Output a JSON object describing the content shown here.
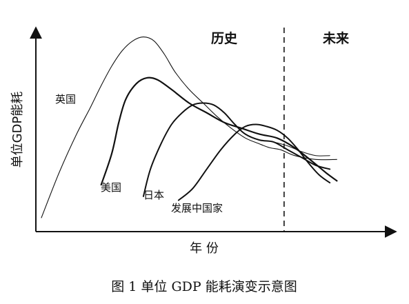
{
  "chart_data": {
    "type": "line",
    "title": "",
    "xlabel": "年 份",
    "ylabel": "单位GDP能耗",
    "xlim": [
      0,
      100
    ],
    "ylim": [
      0,
      100
    ],
    "grid": false,
    "caption": "图 1  单位 GDP 能耗演变示意图",
    "regions": {
      "history_label": "历史",
      "future_label": "未来",
      "divider_x": 69
    },
    "series": [
      {
        "name": "英国",
        "stroke": 1.1,
        "points": [
          [
            0,
            5
          ],
          [
            5,
            28
          ],
          [
            10,
            48
          ],
          [
            14,
            62
          ],
          [
            17,
            73
          ],
          [
            20,
            83
          ],
          [
            23,
            91
          ],
          [
            26,
            96
          ],
          [
            29,
            98
          ],
          [
            32,
            96
          ],
          [
            35,
            89
          ],
          [
            38,
            80
          ],
          [
            42,
            71
          ],
          [
            46,
            64
          ],
          [
            50,
            57
          ],
          [
            54,
            51
          ],
          [
            58,
            46
          ],
          [
            62,
            43
          ],
          [
            65,
            41
          ],
          [
            68,
            40
          ],
          [
            72,
            37
          ],
          [
            78,
            35
          ],
          [
            84,
            35
          ]
        ]
      },
      {
        "name": "美国",
        "stroke": 2.2,
        "points": [
          [
            17,
            22
          ],
          [
            20,
            38
          ],
          [
            22,
            54
          ],
          [
            24,
            66
          ],
          [
            27,
            74
          ],
          [
            30,
            77
          ],
          [
            33,
            76
          ],
          [
            37,
            71
          ],
          [
            42,
            64
          ],
          [
            47,
            59
          ],
          [
            52,
            54
          ],
          [
            57,
            51
          ],
          [
            62,
            48
          ],
          [
            67,
            46
          ],
          [
            72,
            41
          ],
          [
            77,
            34
          ],
          [
            81,
            28
          ],
          [
            84,
            24
          ]
        ]
      },
      {
        "name": "日本",
        "stroke": 2.0,
        "points": [
          [
            29,
            16
          ],
          [
            31,
            30
          ],
          [
            34,
            43
          ],
          [
            37,
            53
          ],
          [
            40,
            59
          ],
          [
            43,
            63
          ],
          [
            46,
            64
          ],
          [
            49,
            63
          ],
          [
            52,
            59
          ],
          [
            55,
            53
          ],
          [
            58,
            48
          ],
          [
            62,
            45
          ],
          [
            66,
            44
          ],
          [
            70,
            40
          ],
          [
            74,
            36
          ],
          [
            78,
            32
          ],
          [
            82,
            30
          ]
        ]
      },
      {
        "name": "发展中国家",
        "stroke": 2.0,
        "points": [
          [
            39,
            14
          ],
          [
            43,
            20
          ],
          [
            47,
            30
          ],
          [
            51,
            40
          ],
          [
            55,
            48
          ],
          [
            58,
            52
          ],
          [
            61,
            53
          ],
          [
            64,
            52
          ],
          [
            67,
            50
          ],
          [
            70,
            46
          ],
          [
            73,
            40
          ],
          [
            76,
            33
          ],
          [
            79,
            27
          ],
          [
            82,
            23
          ]
        ]
      },
      {
        "name": "",
        "stroke": 1.0,
        "points": [
          [
            66,
            44
          ],
          [
            70,
            42
          ],
          [
            74,
            39
          ],
          [
            78,
            37
          ],
          [
            82,
            37
          ]
        ]
      }
    ],
    "series_labels": [
      {
        "series": "英国"
      },
      {
        "series": "美国"
      },
      {
        "series": "日本"
      },
      {
        "series": "发展中国家"
      }
    ]
  }
}
